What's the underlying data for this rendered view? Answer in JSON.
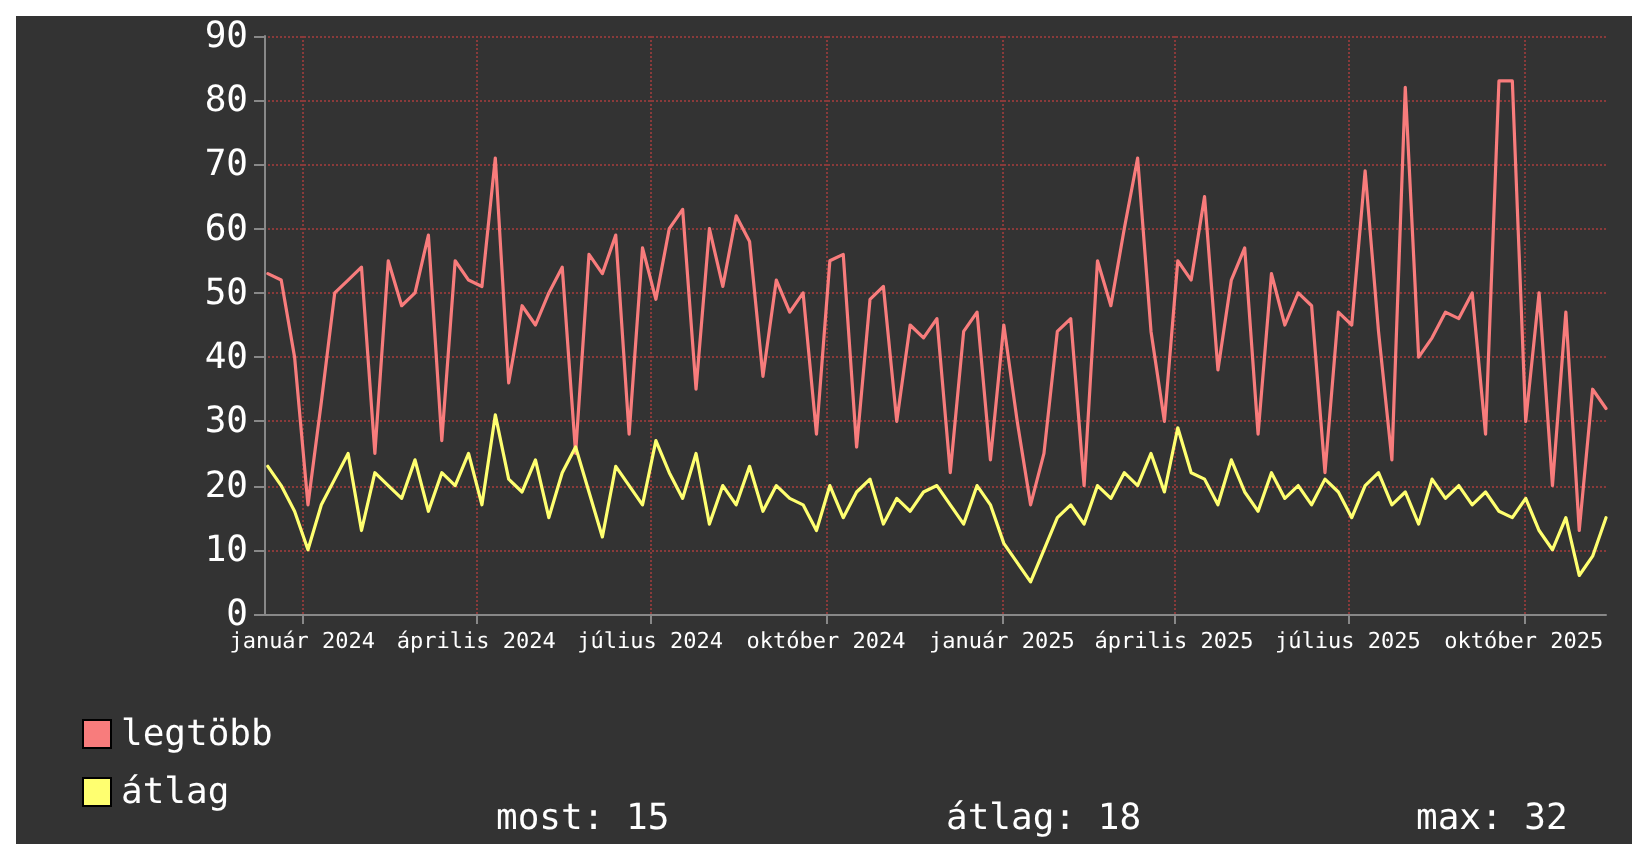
{
  "chart_data": {
    "type": "line",
    "x": [
      "2023-12-14",
      "2023-12-21",
      "2023-12-28",
      "2024-01-04",
      "2024-01-11",
      "2024-01-18",
      "2024-01-25",
      "2024-02-01",
      "2024-02-08",
      "2024-02-15",
      "2024-02-22",
      "2024-02-29",
      "2024-03-07",
      "2024-03-14",
      "2024-03-21",
      "2024-03-28",
      "2024-04-04",
      "2024-04-11",
      "2024-04-18",
      "2024-04-25",
      "2024-05-02",
      "2024-05-09",
      "2024-05-16",
      "2024-05-23",
      "2024-05-30",
      "2024-06-06",
      "2024-06-13",
      "2024-06-20",
      "2024-06-27",
      "2024-07-04",
      "2024-07-11",
      "2024-07-18",
      "2024-07-25",
      "2024-08-01",
      "2024-08-08",
      "2024-08-15",
      "2024-08-22",
      "2024-08-29",
      "2024-09-05",
      "2024-09-12",
      "2024-09-19",
      "2024-09-26",
      "2024-10-03",
      "2024-10-10",
      "2024-10-17",
      "2024-10-24",
      "2024-10-31",
      "2024-11-07",
      "2024-11-14",
      "2024-11-21",
      "2024-11-28",
      "2024-12-05",
      "2024-12-12",
      "2024-12-19",
      "2024-12-26",
      "2025-01-02",
      "2025-01-09",
      "2025-01-16",
      "2025-01-23",
      "2025-01-30",
      "2025-02-06",
      "2025-02-13",
      "2025-02-20",
      "2025-02-27",
      "2025-03-06",
      "2025-03-13",
      "2025-03-20",
      "2025-03-27",
      "2025-04-03",
      "2025-04-10",
      "2025-04-17",
      "2025-04-24",
      "2025-05-01",
      "2025-05-08",
      "2025-05-15",
      "2025-05-22",
      "2025-05-29",
      "2025-06-05",
      "2025-06-12",
      "2025-06-19",
      "2025-06-26",
      "2025-07-03",
      "2025-07-10",
      "2025-07-17",
      "2025-07-24",
      "2025-07-31",
      "2025-08-07",
      "2025-08-14",
      "2025-08-21",
      "2025-08-28",
      "2025-09-04",
      "2025-09-11",
      "2025-09-18",
      "2025-09-25",
      "2025-10-02",
      "2025-10-09",
      "2025-10-16",
      "2025-10-23",
      "2025-10-30",
      "2025-11-06",
      "2025-11-13"
    ],
    "series": [
      {
        "name": "legtöbb",
        "color": "#f87c7c",
        "values": [
          53,
          52,
          40,
          17,
          33,
          50,
          52,
          54,
          25,
          55,
          48,
          50,
          59,
          27,
          55,
          52,
          51,
          71,
          36,
          48,
          45,
          50,
          54,
          25,
          56,
          53,
          59,
          28,
          57,
          49,
          60,
          63,
          35,
          60,
          51,
          62,
          58,
          37,
          52,
          47,
          50,
          28,
          55,
          56,
          26,
          49,
          51,
          30,
          45,
          43,
          46,
          22,
          44,
          47,
          24,
          45,
          30,
          17,
          25,
          44,
          46,
          20,
          55,
          48,
          60,
          71,
          44,
          30,
          55,
          52,
          65,
          38,
          52,
          57,
          28,
          53,
          45,
          50,
          48,
          22,
          47,
          45,
          69,
          44,
          24,
          82,
          40,
          43,
          47,
          46,
          50,
          28,
          83,
          83,
          30,
          50,
          20,
          47,
          13,
          35,
          32
        ]
      },
      {
        "name": "átlag",
        "color": "#ffff70",
        "values": [
          23,
          20,
          16,
          10,
          17,
          21,
          25,
          13,
          22,
          20,
          18,
          24,
          16,
          22,
          20,
          25,
          17,
          31,
          21,
          19,
          24,
          15,
          22,
          26,
          19,
          12,
          23,
          20,
          17,
          27,
          22,
          18,
          25,
          14,
          20,
          17,
          23,
          16,
          20,
          18,
          17,
          13,
          20,
          15,
          19,
          21,
          14,
          18,
          16,
          19,
          20,
          17,
          14,
          20,
          17,
          11,
          8,
          5,
          10,
          15,
          17,
          14,
          20,
          18,
          22,
          20,
          25,
          19,
          29,
          22,
          21,
          17,
          24,
          19,
          16,
          22,
          18,
          20,
          17,
          21,
          19,
          15,
          20,
          22,
          17,
          19,
          14,
          21,
          18,
          20,
          17,
          19,
          16,
          15,
          18,
          13,
          10,
          15,
          6,
          9,
          15
        ]
      }
    ],
    "xlim": [
      "2023-12-12",
      "2025-11-13"
    ],
    "xticks": [
      {
        "value": "2024-01-01",
        "label": "január 2024"
      },
      {
        "value": "2024-04-01",
        "label": "április 2024"
      },
      {
        "value": "2024-07-01",
        "label": "július 2024"
      },
      {
        "value": "2024-10-01",
        "label": "október 2024"
      },
      {
        "value": "2025-01-01",
        "label": "január 2025"
      },
      {
        "value": "2025-04-01",
        "label": "április 2025"
      },
      {
        "value": "2025-07-01",
        "label": "július 2025"
      },
      {
        "value": "2025-10-01",
        "label": "október 2025"
      }
    ],
    "ylim": [
      0,
      90
    ],
    "yticks": [
      0,
      10,
      20,
      30,
      40,
      50,
      60,
      70,
      80,
      90
    ],
    "grid": true,
    "legend": "bottom left",
    "marker": "none",
    "line_style": "solid",
    "annotations": [
      "most: 15",
      "átlag: 18",
      "max: 32"
    ]
  }
}
